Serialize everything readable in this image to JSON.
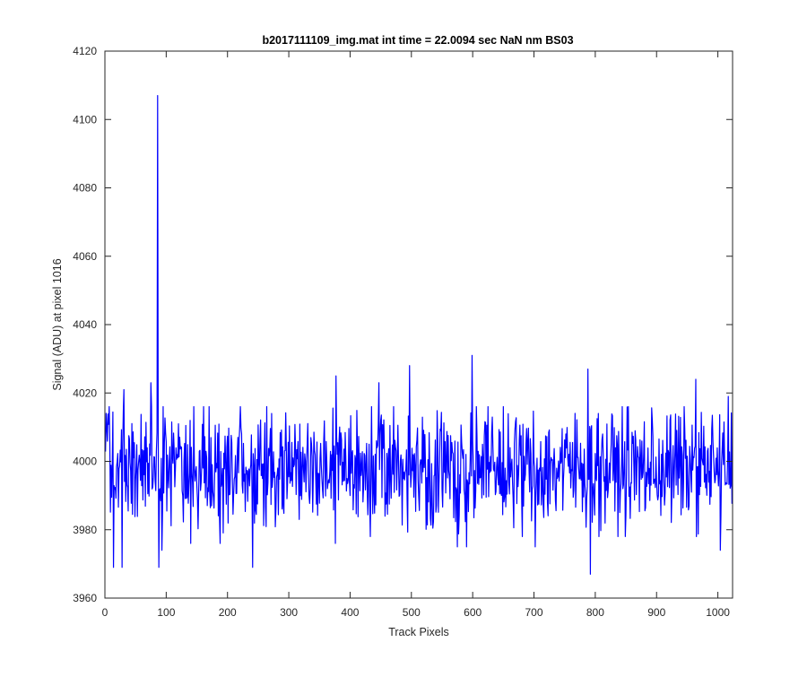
{
  "chart_data": {
    "type": "line",
    "title": "b2017111109_img.mat int time = 22.0094 sec   NaN nm BS03",
    "xlabel": "Track Pixels",
    "ylabel": "Signal (ADU) at pixel 1016",
    "xlim": [
      0,
      1024
    ],
    "ylim": [
      3960,
      4120
    ],
    "xticks": [
      "0",
      "100",
      "200",
      "300",
      "400",
      "500",
      "600",
      "700",
      "800",
      "900",
      "1000"
    ],
    "yticks": [
      "3960",
      "3980",
      "4000",
      "4020",
      "4040",
      "4060",
      "4080",
      "4100",
      "4120"
    ],
    "grid": false,
    "series": [
      {
        "color": "#0000ff",
        "x_start": 1,
        "x_step": 1,
        "noise_mean": 3998,
        "noise_amplitude": 14,
        "highlighted_points": [
          {
            "x": 14,
            "y": 3969
          },
          {
            "x": 28,
            "y": 3969
          },
          {
            "x": 31,
            "y": 4021
          },
          {
            "x": 75,
            "y": 4023
          },
          {
            "x": 86,
            "y": 4107
          },
          {
            "x": 88,
            "y": 3969
          },
          {
            "x": 93,
            "y": 3974
          },
          {
            "x": 140,
            "y": 3976
          },
          {
            "x": 188,
            "y": 3976
          },
          {
            "x": 241,
            "y": 3969
          },
          {
            "x": 376,
            "y": 3976
          },
          {
            "x": 377,
            "y": 4025
          },
          {
            "x": 447,
            "y": 4023
          },
          {
            "x": 497,
            "y": 4028
          },
          {
            "x": 575,
            "y": 3975
          },
          {
            "x": 590,
            "y": 3975
          },
          {
            "x": 599,
            "y": 4031
          },
          {
            "x": 702,
            "y": 3975
          },
          {
            "x": 788,
            "y": 4027
          },
          {
            "x": 792,
            "y": 3967
          },
          {
            "x": 964,
            "y": 4024
          },
          {
            "x": 1004,
            "y": 3974
          },
          {
            "x": 1017,
            "y": 4019
          }
        ]
      }
    ]
  }
}
